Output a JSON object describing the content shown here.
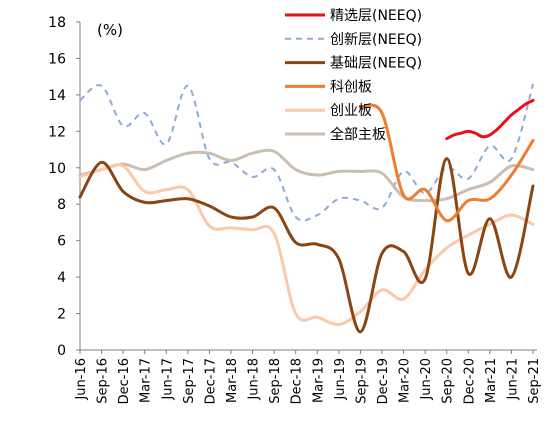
{
  "chart_data": {
    "type": "line",
    "unit_label": "(%)",
    "ylim": [
      0,
      18
    ],
    "yticks": [
      0,
      2,
      4,
      6,
      8,
      10,
      12,
      14,
      16,
      18
    ],
    "grid": false,
    "legend_position": "top-right",
    "x": [
      "Jun-16",
      "Sep-16",
      "Dec-16",
      "Mar-17",
      "Jun-17",
      "Sep-17",
      "Dec-17",
      "Mar-18",
      "Jun-18",
      "Sep-18",
      "Dec-18",
      "Mar-19",
      "Jun-19",
      "Sep-19",
      "Dec-19",
      "Mar-20",
      "Jun-20",
      "Sep-20",
      "Dec-20",
      "Mar-21",
      "Jun-21",
      "Sep-21"
    ],
    "series": [
      {
        "name": "精选层(NEEQ)",
        "color": "#e8101a",
        "dash": "solid",
        "x": [
          "Sep-20",
          "Oct-20",
          "Nov-20",
          "Dec-20",
          "Jan-21",
          "Feb-21",
          "Mar-21",
          "Apr-21",
          "May-21",
          "Jun-21",
          "Jul-21",
          "Aug-21",
          "Sep-21"
        ],
        "values": [
          11.6,
          11.8,
          11.9,
          12.0,
          11.9,
          11.7,
          11.8,
          12.1,
          12.5,
          12.9,
          13.2,
          13.5,
          13.7
        ]
      },
      {
        "name": "创新层(NEEQ)",
        "color": "#8eaad8",
        "dash": "dashed",
        "x": [
          "Jun-16",
          "Sep-16",
          "Dec-16",
          "Mar-17",
          "Jun-17",
          "Sep-17",
          "Dec-17",
          "Mar-18",
          "Jun-18",
          "Sep-18",
          "Dec-18",
          "Mar-19",
          "Jun-19",
          "Sep-19",
          "Dec-19",
          "Mar-20",
          "Jun-20",
          "Sep-20",
          "Dec-20",
          "Mar-21",
          "Jun-21",
          "Sep-21"
        ],
        "values": [
          13.7,
          14.5,
          12.3,
          13.0,
          11.3,
          14.5,
          10.5,
          10.3,
          9.5,
          9.9,
          7.3,
          7.4,
          8.3,
          8.2,
          7.8,
          9.8,
          8.6,
          10.0,
          9.4,
          11.2,
          10.5,
          14.6
        ]
      },
      {
        "name": "基础层(NEEQ)",
        "color": "#8b4513",
        "dash": "solid",
        "x": [
          "Jun-16",
          "Sep-16",
          "Dec-16",
          "Mar-17",
          "Jun-17",
          "Sep-17",
          "Dec-17",
          "Mar-18",
          "Jun-18",
          "Sep-18",
          "Dec-18",
          "Mar-19",
          "Jun-19",
          "Sep-19",
          "Dec-19",
          "Mar-20",
          "Jun-20",
          "Sep-20",
          "Dec-20",
          "Mar-21",
          "Jun-21",
          "Sep-21"
        ],
        "values": [
          8.4,
          10.3,
          8.7,
          8.1,
          8.2,
          8.3,
          7.9,
          7.3,
          7.3,
          7.8,
          5.9,
          5.8,
          5.0,
          1.0,
          5.3,
          5.4,
          3.9,
          10.5,
          4.2,
          7.2,
          4.0,
          9.0
        ]
      },
      {
        "name": "科创板",
        "color": "#ed7d31",
        "dash": "solid",
        "x": [
          "Sep-19",
          "Dec-19",
          "Mar-20",
          "Jun-20",
          "Sep-20",
          "Dec-20",
          "Mar-21",
          "Jun-21",
          "Sep-21"
        ],
        "values": [
          13.3,
          13.0,
          8.5,
          8.8,
          7.1,
          8.2,
          8.3,
          9.6,
          11.5
        ]
      },
      {
        "name": "创业板",
        "color": "#fbc9a8",
        "dash": "solid",
        "x": [
          "Jun-16",
          "Sep-16",
          "Dec-16",
          "Mar-17",
          "Jun-17",
          "Sep-17",
          "Dec-17",
          "Mar-18",
          "Jun-18",
          "Sep-18",
          "Dec-18",
          "Mar-19",
          "Jun-19",
          "Sep-19",
          "Dec-19",
          "Mar-20",
          "Jun-20",
          "Sep-20",
          "Dec-20",
          "Mar-21",
          "Jun-21",
          "Sep-21"
        ],
        "values": [
          9.5,
          9.9,
          10.1,
          8.7,
          8.8,
          8.8,
          6.8,
          6.7,
          6.6,
          6.4,
          2.0,
          1.8,
          1.4,
          2.1,
          3.3,
          2.8,
          4.4,
          5.6,
          6.3,
          6.9,
          7.4,
          6.9
        ]
      },
      {
        "name": "全部主板",
        "color": "#c8bfb2",
        "dash": "solid",
        "x": [
          "Jun-16",
          "Sep-16",
          "Dec-16",
          "Mar-17",
          "Jun-17",
          "Sep-17",
          "Dec-17",
          "Mar-18",
          "Jun-18",
          "Sep-18",
          "Dec-18",
          "Mar-19",
          "Jun-19",
          "Sep-19",
          "Dec-19",
          "Mar-20",
          "Jun-20",
          "Sep-20",
          "Dec-20",
          "Mar-21",
          "Jun-21",
          "Sep-21"
        ],
        "values": [
          9.6,
          9.9,
          10.2,
          9.9,
          10.4,
          10.8,
          10.8,
          10.4,
          10.8,
          10.9,
          9.9,
          9.6,
          9.8,
          9.8,
          9.7,
          8.4,
          8.2,
          8.3,
          8.8,
          9.2,
          10.1,
          9.9
        ]
      }
    ]
  }
}
